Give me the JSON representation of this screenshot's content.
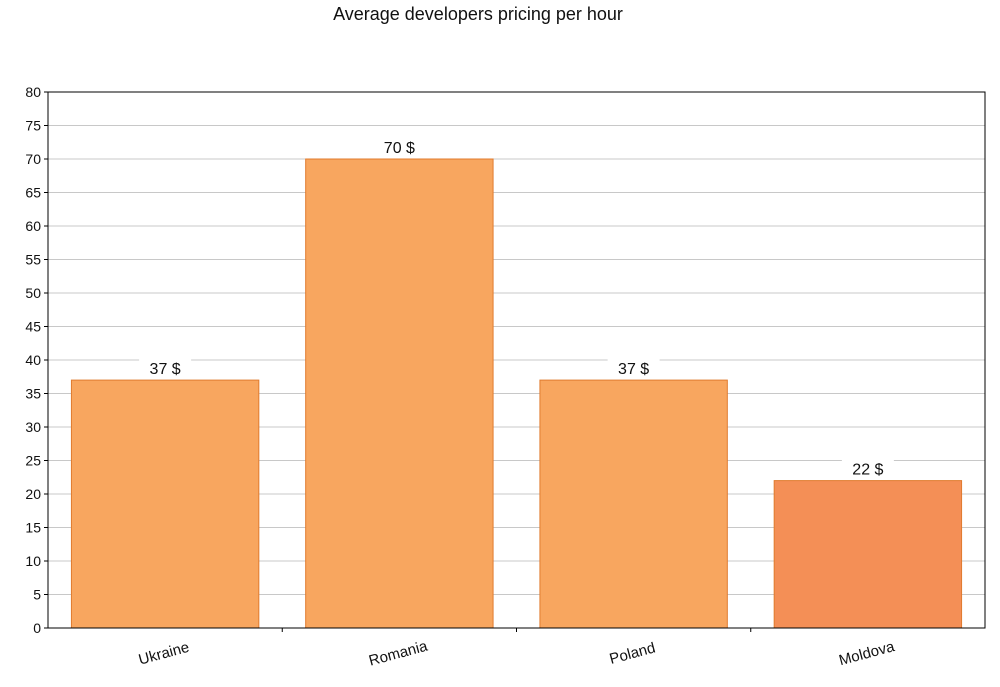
{
  "chart_data": {
    "type": "bar",
    "title": "Average developers pricing per hour",
    "categories": [
      "Ukraine",
      "Romania",
      "Poland",
      "Moldova"
    ],
    "values": [
      37,
      70,
      37,
      22
    ],
    "value_labels": [
      "37 $",
      "70 $",
      "37 $",
      "22 $"
    ],
    "ylim": [
      0,
      80
    ],
    "y_ticks": [
      "0",
      "5",
      "10",
      "15",
      "20",
      "25",
      "30",
      "35",
      "40",
      "45",
      "50",
      "55",
      "60",
      "65",
      "70",
      "75",
      "80"
    ],
    "grid": true,
    "legend": "none",
    "colors": {
      "bar": "#F8A65F",
      "bar_highlight": "#F48F56",
      "bar_stroke": "#E07B2E",
      "grid": "#C8C8C8",
      "axis": "#000000",
      "label_bg": "#FFFFFF"
    }
  }
}
